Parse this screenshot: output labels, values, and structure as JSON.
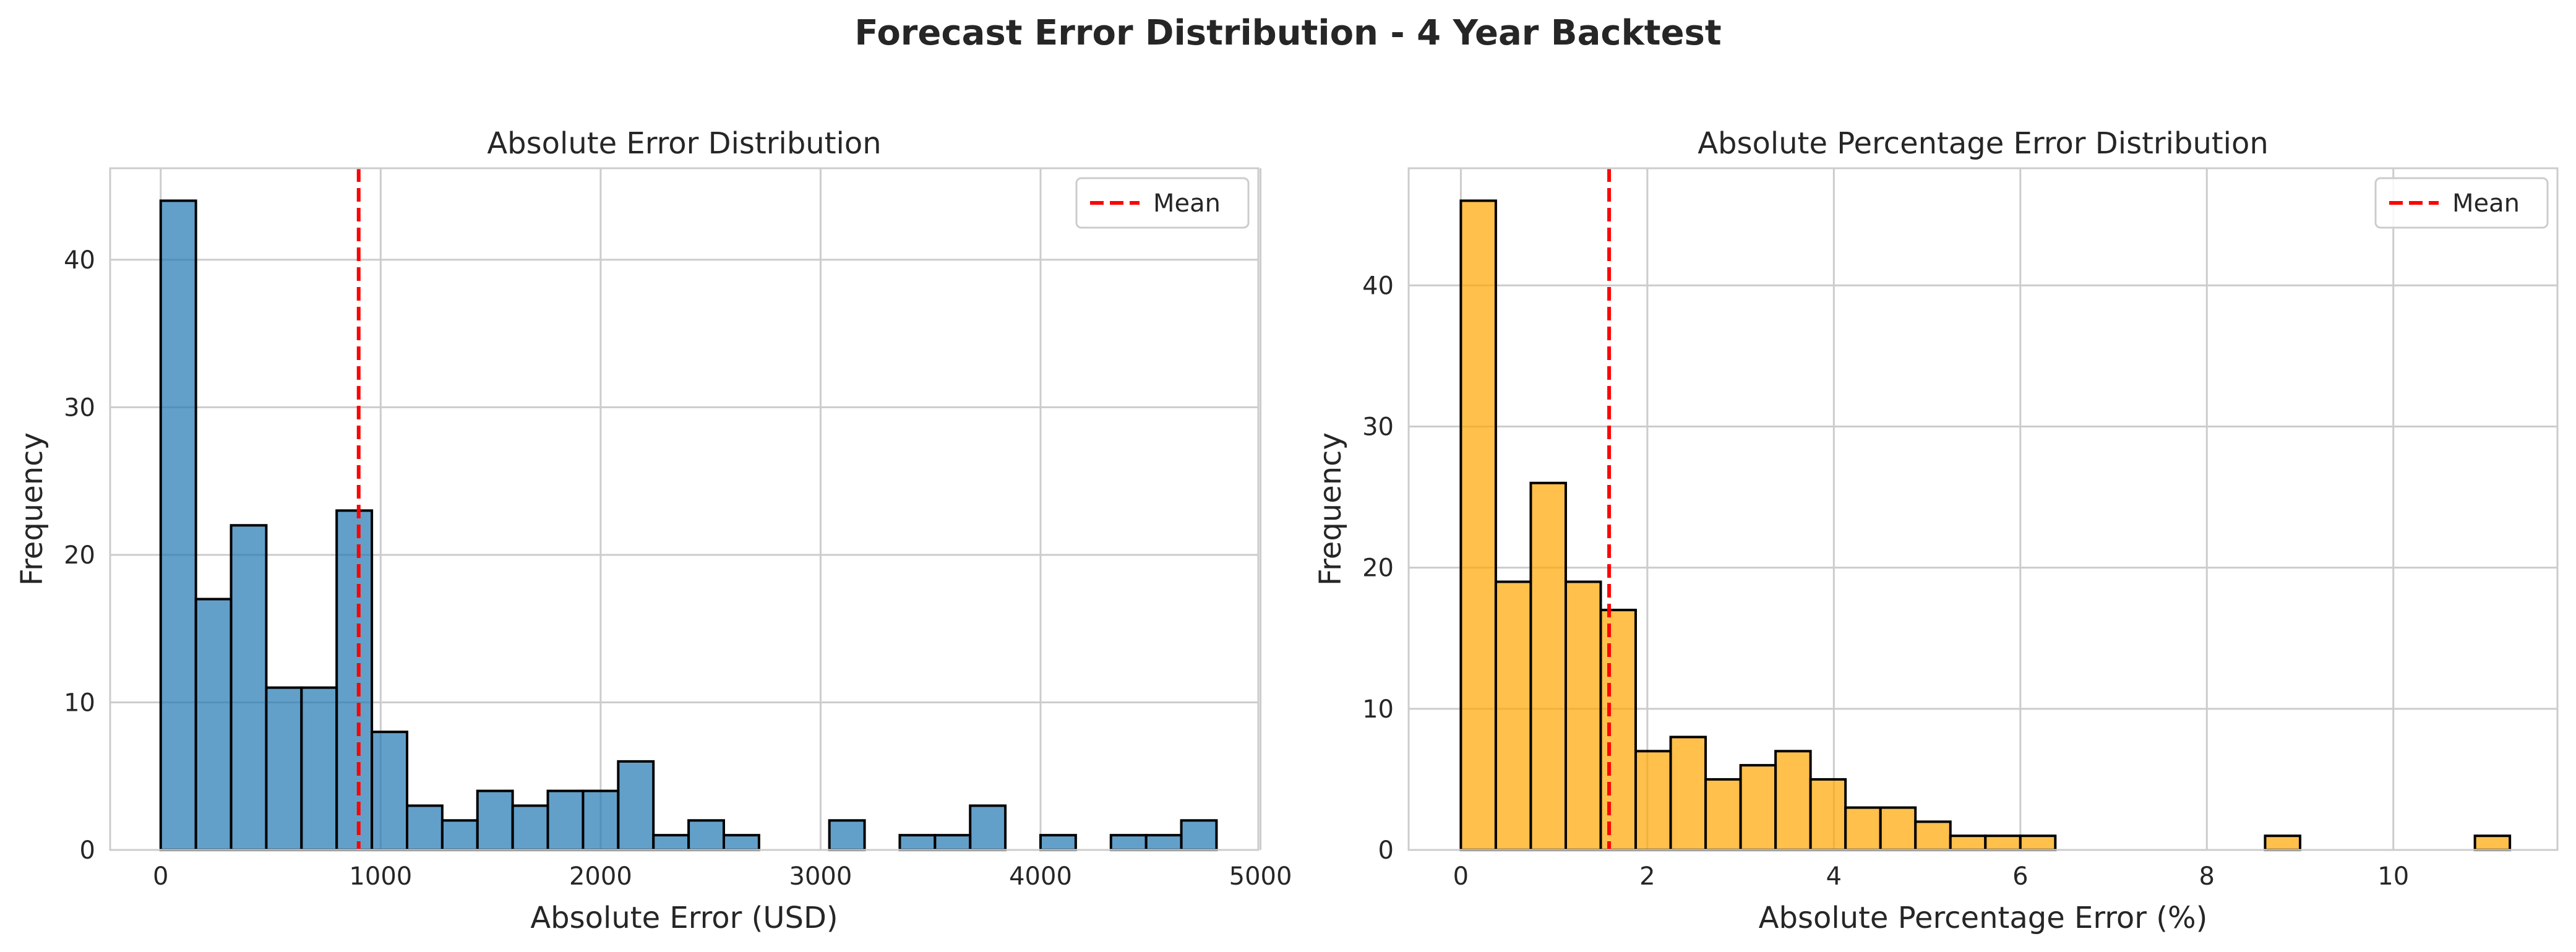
{
  "figure": {
    "title": "Forecast Error Distribution - 4 Year Backtest"
  },
  "chart_data": [
    {
      "type": "bar",
      "subtype": "histogram",
      "title": "Absolute Error Distribution",
      "xlabel": "Absolute Error (USD)",
      "ylabel": "Frequency",
      "xlim": [
        -230,
        4990
      ],
      "ylim": [
        0,
        46.2
      ],
      "xticks": [
        0,
        1000,
        2000,
        3000,
        4000,
        5000
      ],
      "yticks": [
        0,
        10,
        20,
        30,
        40
      ],
      "bin_start": 0,
      "bin_width": 160,
      "values": [
        44,
        17,
        22,
        11,
        11,
        23,
        8,
        3,
        2,
        4,
        3,
        4,
        4,
        6,
        1,
        2,
        1,
        0,
        0,
        2,
        0,
        1,
        1,
        3,
        0,
        1,
        0,
        1,
        1,
        2
      ],
      "bar_color": "#1f77b4",
      "bar_opacity": 0.7,
      "edge_color": "#000000",
      "mean": 900,
      "mean_color": "#ff0000",
      "legend": {
        "position": "top-right",
        "entries": [
          "Mean"
        ]
      },
      "grid": true
    },
    {
      "type": "bar",
      "subtype": "histogram",
      "title": "Absolute Percentage Error Distribution",
      "xlabel": "Absolute Percentage Error (%)",
      "ylabel": "Frequency",
      "xlim": [
        -0.56,
        11.76
      ],
      "ylim": [
        0,
        48.3
      ],
      "xticks": [
        0,
        2,
        4,
        6,
        8,
        10
      ],
      "yticks": [
        0,
        10,
        20,
        30,
        40
      ],
      "bin_start": 0,
      "bin_width": 0.375,
      "values": [
        46,
        19,
        26,
        19,
        17,
        7,
        8,
        5,
        6,
        7,
        5,
        3,
        3,
        2,
        1,
        1,
        1,
        0,
        0,
        0,
        0,
        0,
        0,
        1,
        0,
        0,
        0,
        0,
        0,
        1
      ],
      "bar_color": "#ffa500",
      "bar_opacity": 0.7,
      "edge_color": "#000000",
      "mean": 1.59,
      "mean_color": "#ff0000",
      "legend": {
        "position": "top-right",
        "entries": [
          "Mean"
        ]
      },
      "grid": true
    }
  ]
}
